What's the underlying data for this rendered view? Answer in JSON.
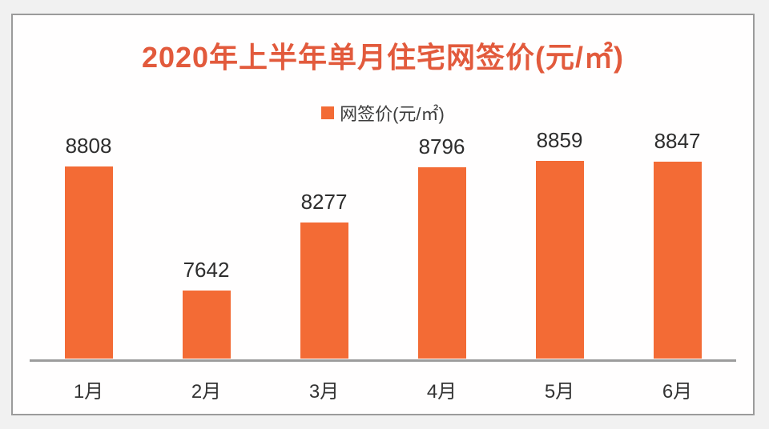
{
  "page": {
    "background": "#f1f1f1"
  },
  "card": {
    "background": "#fffefe",
    "border_color": "#9b9b9b"
  },
  "chart_data": {
    "type": "bar",
    "title": "2020年上半年单月住宅网签价(元/㎡)",
    "title_color": "#e25a3c",
    "legend": {
      "label": "网签价(元/㎡)",
      "marker_color": "#f36b35",
      "position": "top-center"
    },
    "categories": [
      "1月",
      "2月",
      "3月",
      "4月",
      "5月",
      "6月"
    ],
    "values": [
      8808,
      7642,
      8277,
      8796,
      8859,
      8847
    ],
    "series_name": "网签价(元/㎡)",
    "xlabel": "",
    "ylabel": "",
    "ylim": [
      7000,
      9000
    ],
    "grid": false,
    "bar_color": "#f36b35",
    "value_label_color": "#2d2d2d",
    "category_label_color": "#333333",
    "axis_line_color": "#9c9c9c"
  }
}
